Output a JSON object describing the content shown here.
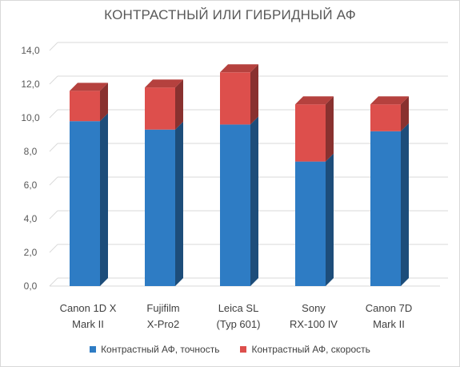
{
  "chart_data": {
    "type": "bar",
    "stacked": true,
    "style": "3d-column",
    "title": "КОНТРАСТНЫЙ ИЛИ ГИБРИДНЫЙ АФ",
    "categories": [
      [
        "Canon 1D X",
        "Mark II"
      ],
      [
        "Fujifilm",
        "X-Pro2"
      ],
      [
        "Leica SL",
        "(Typ 601)"
      ],
      [
        "Sony",
        "RX-100 IV"
      ],
      [
        "Canon 7D",
        "Mark II"
      ]
    ],
    "series": [
      {
        "name": "Контрастный АФ, точность",
        "color": "#2e7cc4",
        "values": [
          9.8,
          9.3,
          9.6,
          7.4,
          9.2
        ]
      },
      {
        "name": "Контрастный АФ, скорость",
        "color": "#dd4f4c",
        "values": [
          1.8,
          2.5,
          3.1,
          3.4,
          1.6
        ]
      }
    ],
    "yticks": [
      "0,0",
      "2,0",
      "4,0",
      "6,0",
      "8,0",
      "10,0",
      "12,0",
      "14,0"
    ],
    "ylim": [
      0,
      14
    ],
    "grid": true,
    "legend_position": "bottom"
  }
}
